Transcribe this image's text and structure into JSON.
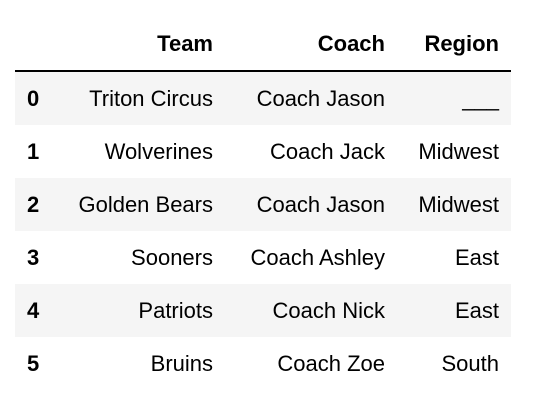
{
  "table": {
    "columns": [
      "",
      "Team",
      "Coach",
      "Region"
    ],
    "rows": [
      {
        "index": "0",
        "team": "Triton Circus",
        "coach": "Coach Jason",
        "region": "___"
      },
      {
        "index": "1",
        "team": "Wolverines",
        "coach": "Coach Jack",
        "region": "Midwest"
      },
      {
        "index": "2",
        "team": "Golden Bears",
        "coach": "Coach Jason",
        "region": "Midwest"
      },
      {
        "index": "3",
        "team": "Sooners",
        "coach": "Coach Ashley",
        "region": "East"
      },
      {
        "index": "4",
        "team": "Patriots",
        "coach": "Coach Nick",
        "region": "East"
      },
      {
        "index": "5",
        "team": "Bruins",
        "coach": "Coach Zoe",
        "region": "South"
      }
    ],
    "stripe_color": "#f5f5f5"
  }
}
